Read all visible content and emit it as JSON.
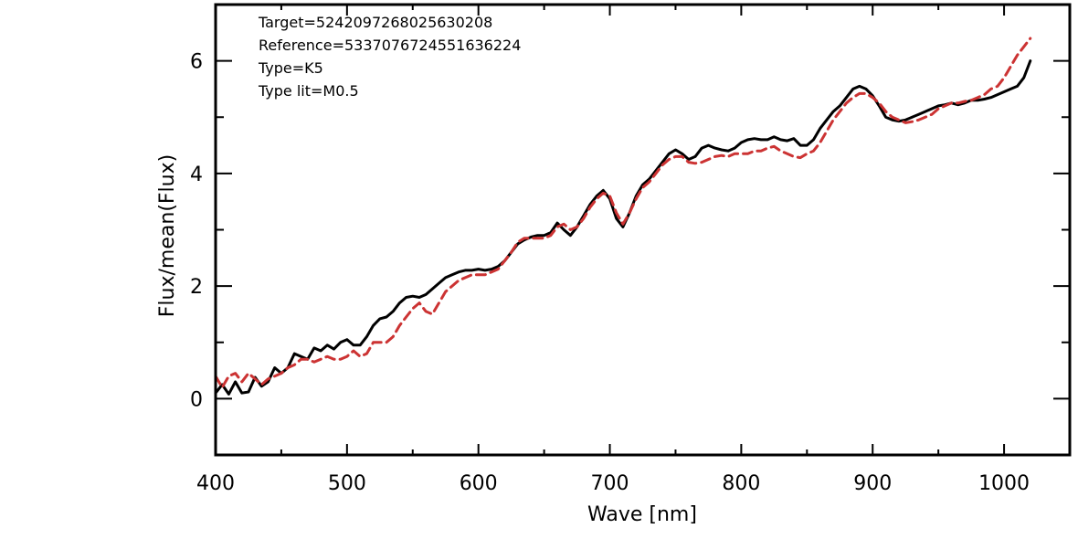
{
  "chart_data": {
    "type": "line",
    "xlabel": "Wave [nm]",
    "ylabel": "Flux/mean(Flux)",
    "xlim": [
      400,
      1050
    ],
    "ylim": [
      -1,
      7
    ],
    "xticks": [
      400,
      500,
      600,
      700,
      800,
      900,
      1000
    ],
    "yticks": [
      0,
      2,
      4,
      6
    ],
    "grid": false,
    "annotations": [
      "Target=5242097268025630208",
      "Reference=5337076724551636224",
      "Type=K5",
      "Type lit=M0.5"
    ],
    "series": [
      {
        "color": "#000000",
        "style": "solid",
        "x": [
          400,
          405,
          410,
          415,
          420,
          425,
          430,
          435,
          440,
          445,
          450,
          455,
          460,
          465,
          470,
          475,
          480,
          485,
          490,
          495,
          500,
          505,
          510,
          515,
          520,
          525,
          530,
          535,
          540,
          545,
          550,
          555,
          560,
          565,
          570,
          575,
          580,
          585,
          590,
          595,
          600,
          605,
          610,
          615,
          620,
          625,
          630,
          635,
          640,
          645,
          650,
          655,
          660,
          665,
          670,
          675,
          680,
          685,
          690,
          695,
          700,
          705,
          710,
          715,
          720,
          725,
          730,
          735,
          740,
          745,
          750,
          755,
          760,
          765,
          770,
          775,
          780,
          785,
          790,
          795,
          800,
          805,
          810,
          815,
          820,
          825,
          830,
          835,
          840,
          845,
          850,
          855,
          860,
          865,
          870,
          875,
          880,
          885,
          890,
          895,
          900,
          905,
          910,
          915,
          920,
          925,
          930,
          935,
          940,
          945,
          950,
          955,
          960,
          965,
          970,
          975,
          980,
          985,
          990,
          995,
          1000,
          1005,
          1010,
          1015,
          1020
        ],
        "y": [
          0.1,
          0.25,
          0.08,
          0.3,
          0.1,
          0.12,
          0.38,
          0.22,
          0.3,
          0.55,
          0.45,
          0.55,
          0.8,
          0.75,
          0.7,
          0.9,
          0.85,
          0.95,
          0.88,
          1.0,
          1.05,
          0.95,
          0.95,
          1.1,
          1.3,
          1.42,
          1.45,
          1.55,
          1.7,
          1.8,
          1.82,
          1.8,
          1.85,
          1.95,
          2.05,
          2.15,
          2.2,
          2.25,
          2.28,
          2.28,
          2.3,
          2.28,
          2.3,
          2.35,
          2.45,
          2.6,
          2.75,
          2.82,
          2.87,
          2.9,
          2.9,
          2.95,
          3.12,
          3.0,
          2.9,
          3.05,
          3.25,
          3.45,
          3.6,
          3.7,
          3.55,
          3.2,
          3.05,
          3.3,
          3.6,
          3.8,
          3.9,
          4.05,
          4.2,
          4.35,
          4.42,
          4.35,
          4.25,
          4.3,
          4.45,
          4.5,
          4.45,
          4.42,
          4.4,
          4.45,
          4.55,
          4.6,
          4.62,
          4.6,
          4.6,
          4.65,
          4.6,
          4.58,
          4.62,
          4.5,
          4.5,
          4.6,
          4.8,
          4.95,
          5.1,
          5.2,
          5.35,
          5.5,
          5.55,
          5.5,
          5.38,
          5.2,
          5.0,
          4.95,
          4.93,
          4.95,
          5.0,
          5.05,
          5.1,
          5.15,
          5.2,
          5.22,
          5.25,
          5.22,
          5.25,
          5.3,
          5.3,
          5.32,
          5.35,
          5.4,
          5.45,
          5.5,
          5.55,
          5.7,
          6.0
        ]
      },
      {
        "color": "#cc3333",
        "style": "dashed",
        "x": [
          400,
          405,
          410,
          415,
          420,
          425,
          430,
          435,
          440,
          445,
          450,
          455,
          460,
          465,
          470,
          475,
          480,
          485,
          490,
          495,
          500,
          505,
          510,
          515,
          520,
          525,
          530,
          535,
          540,
          545,
          550,
          555,
          560,
          565,
          570,
          575,
          580,
          585,
          590,
          595,
          600,
          605,
          610,
          615,
          620,
          625,
          630,
          635,
          640,
          645,
          650,
          655,
          660,
          665,
          670,
          675,
          680,
          685,
          690,
          695,
          700,
          705,
          710,
          715,
          720,
          725,
          730,
          735,
          740,
          745,
          750,
          755,
          760,
          765,
          770,
          775,
          780,
          785,
          790,
          795,
          800,
          805,
          810,
          815,
          820,
          825,
          830,
          835,
          840,
          845,
          850,
          855,
          860,
          865,
          870,
          875,
          880,
          885,
          890,
          895,
          900,
          905,
          910,
          915,
          920,
          925,
          930,
          935,
          940,
          945,
          950,
          955,
          960,
          965,
          970,
          975,
          980,
          985,
          990,
          995,
          1000,
          1005,
          1010,
          1015,
          1020
        ],
        "y": [
          0.4,
          0.2,
          0.4,
          0.45,
          0.3,
          0.45,
          0.35,
          0.25,
          0.35,
          0.4,
          0.45,
          0.55,
          0.6,
          0.7,
          0.7,
          0.65,
          0.7,
          0.75,
          0.7,
          0.7,
          0.75,
          0.85,
          0.75,
          0.8,
          1.0,
          1.0,
          1.0,
          1.1,
          1.3,
          1.45,
          1.6,
          1.7,
          1.55,
          1.5,
          1.7,
          1.9,
          2.0,
          2.1,
          2.15,
          2.2,
          2.2,
          2.2,
          2.25,
          2.3,
          2.45,
          2.6,
          2.78,
          2.85,
          2.85,
          2.85,
          2.85,
          2.9,
          3.05,
          3.1,
          3.0,
          3.05,
          3.2,
          3.4,
          3.55,
          3.65,
          3.6,
          3.3,
          3.1,
          3.3,
          3.55,
          3.75,
          3.85,
          4.0,
          4.15,
          4.25,
          4.3,
          4.3,
          4.2,
          4.18,
          4.2,
          4.25,
          4.3,
          4.32,
          4.3,
          4.35,
          4.35,
          4.35,
          4.4,
          4.4,
          4.45,
          4.48,
          4.4,
          4.35,
          4.3,
          4.28,
          4.35,
          4.4,
          4.55,
          4.75,
          4.95,
          5.1,
          5.25,
          5.35,
          5.42,
          5.42,
          5.35,
          5.25,
          5.1,
          5.0,
          4.95,
          4.9,
          4.92,
          4.95,
          5.0,
          5.05,
          5.15,
          5.2,
          5.25,
          5.25,
          5.28,
          5.3,
          5.35,
          5.4,
          5.5,
          5.55,
          5.7,
          5.9,
          6.1,
          6.25,
          6.4
        ]
      }
    ]
  }
}
